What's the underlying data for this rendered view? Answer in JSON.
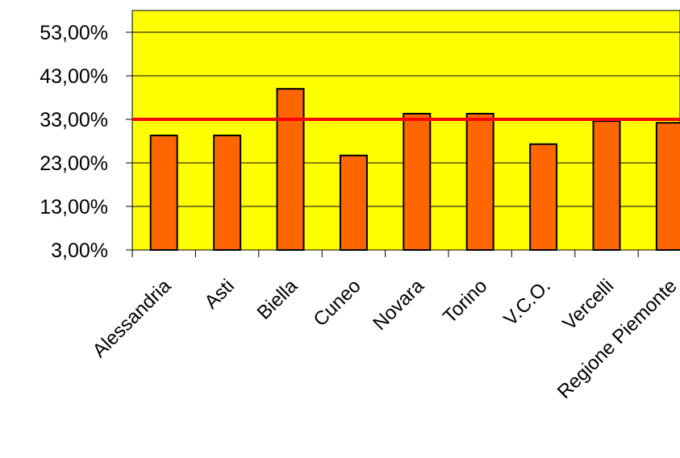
{
  "chart_data": {
    "type": "bar",
    "categories": [
      "Alessandria",
      "Asti",
      "Biella",
      "Cuneo",
      "Novara",
      "Torino",
      "V.C.O.",
      "Vercelli",
      "Regione Piemonte"
    ],
    "values": [
      29.3,
      29.3,
      40.0,
      24.7,
      34.3,
      34.3,
      27.3,
      32.6,
      32.2
    ],
    "ylim": [
      3,
      58
    ],
    "yticks": [
      3,
      13,
      23,
      33,
      43,
      53
    ],
    "ytick_labels": [
      "3,00%",
      "13,00%",
      "23,00%",
      "33,00%",
      "43,00%",
      "53,00%"
    ],
    "reference_line": 33,
    "grid": true,
    "colors": {
      "plot_background": "#ffff00",
      "bar_fill": "#ff6600",
      "bar_stroke": "#000000",
      "reference_line": "#ff0000",
      "gridline": "#000000"
    }
  }
}
